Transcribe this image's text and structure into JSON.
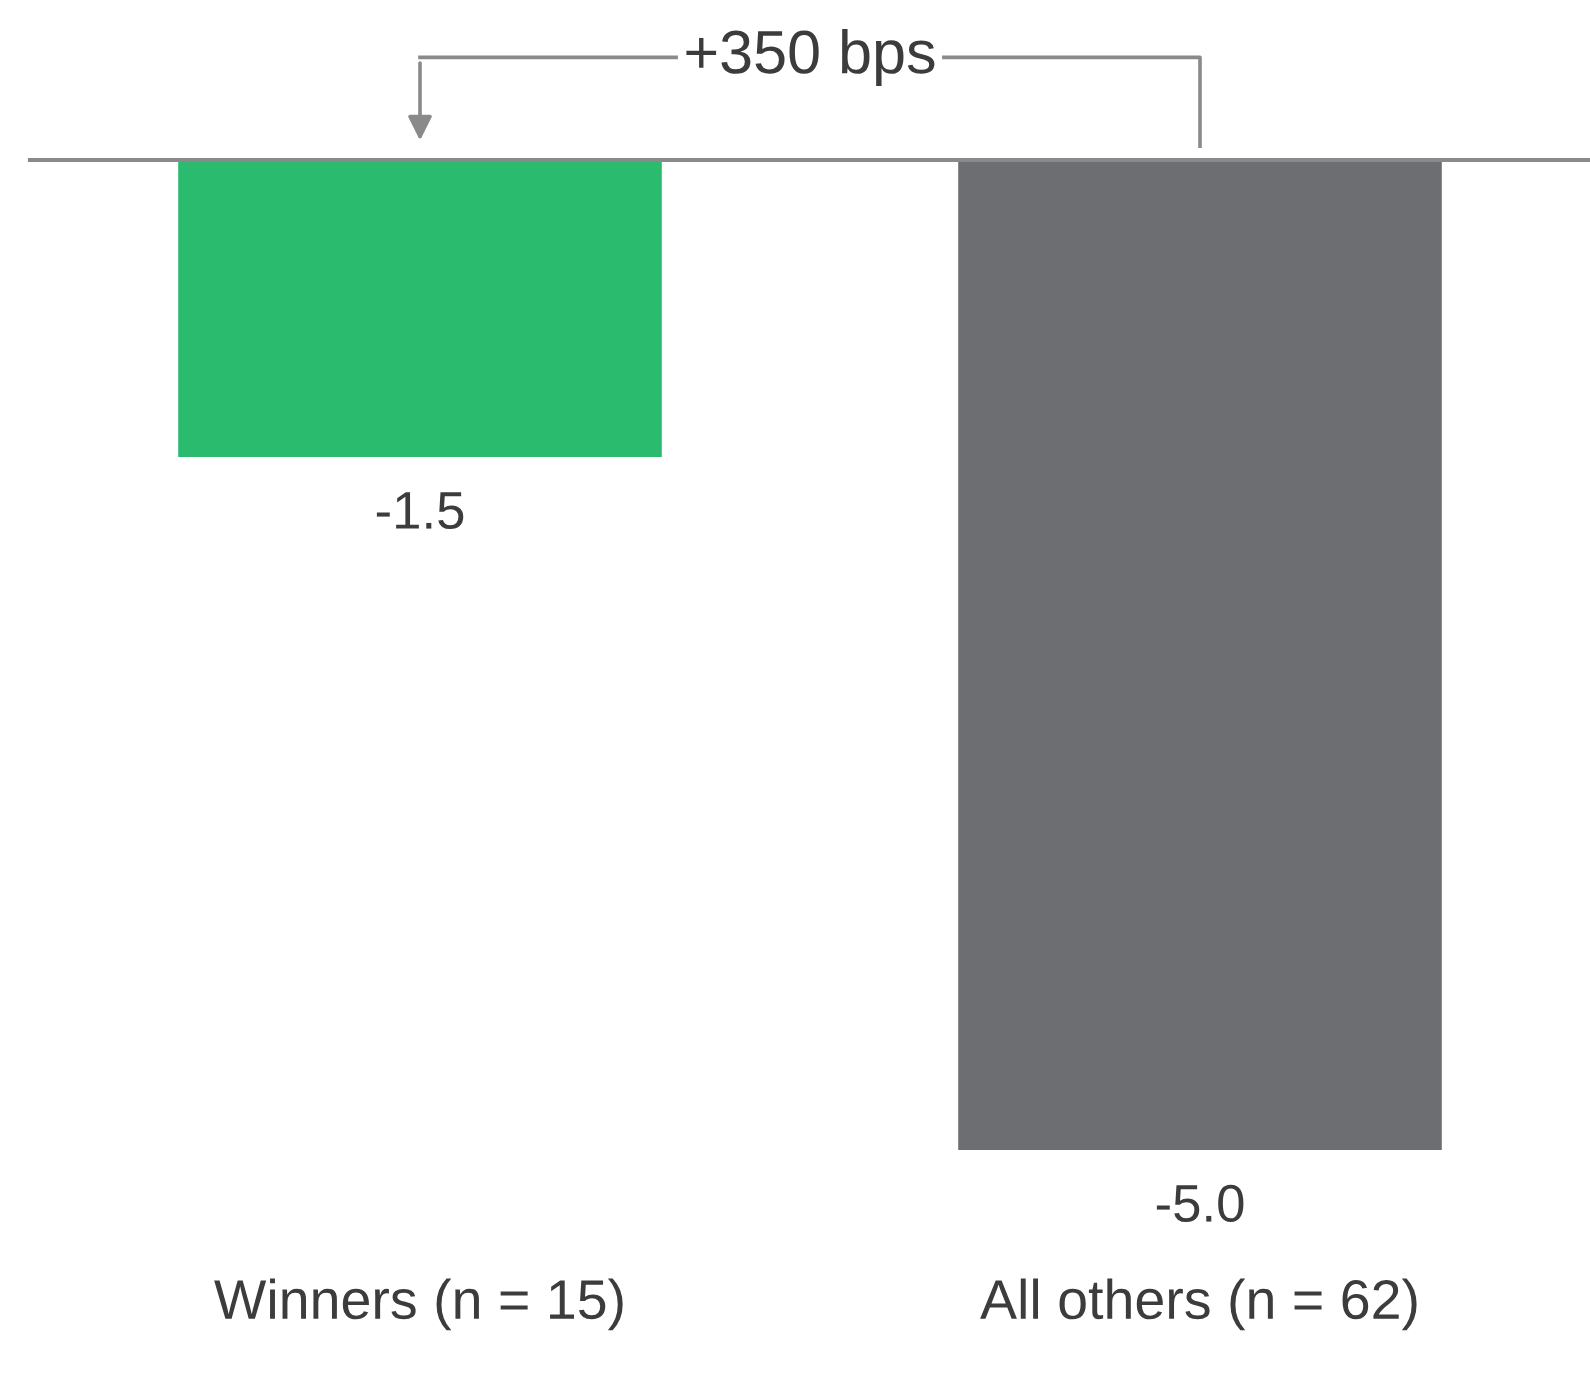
{
  "chart_data": {
    "type": "bar",
    "categories": [
      "Winners (n = 15)",
      "All others (n = 62)"
    ],
    "values": [
      -1.5,
      -5.0
    ],
    "colors": [
      "#2bbb6e",
      "#6d6e71"
    ],
    "value_labels": [
      "-1.5",
      "-5.0"
    ],
    "annotations": [
      "+350 bps"
    ]
  }
}
